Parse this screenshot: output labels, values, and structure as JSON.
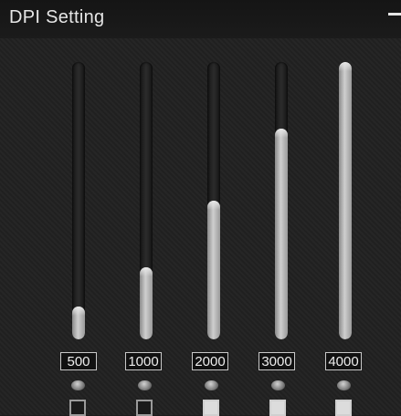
{
  "window": {
    "title": "DPI Setting",
    "minimize_icon": "minimize-icon"
  },
  "dpi_levels": [
    {
      "value": "500",
      "level": 0.12,
      "active": false
    },
    {
      "value": "1000",
      "level": 0.26,
      "active": false
    },
    {
      "value": "2000",
      "level": 0.5,
      "active": true
    },
    {
      "value": "3000",
      "level": 0.76,
      "active": true
    },
    {
      "value": "4000",
      "level": 1.0,
      "active": true
    }
  ]
}
